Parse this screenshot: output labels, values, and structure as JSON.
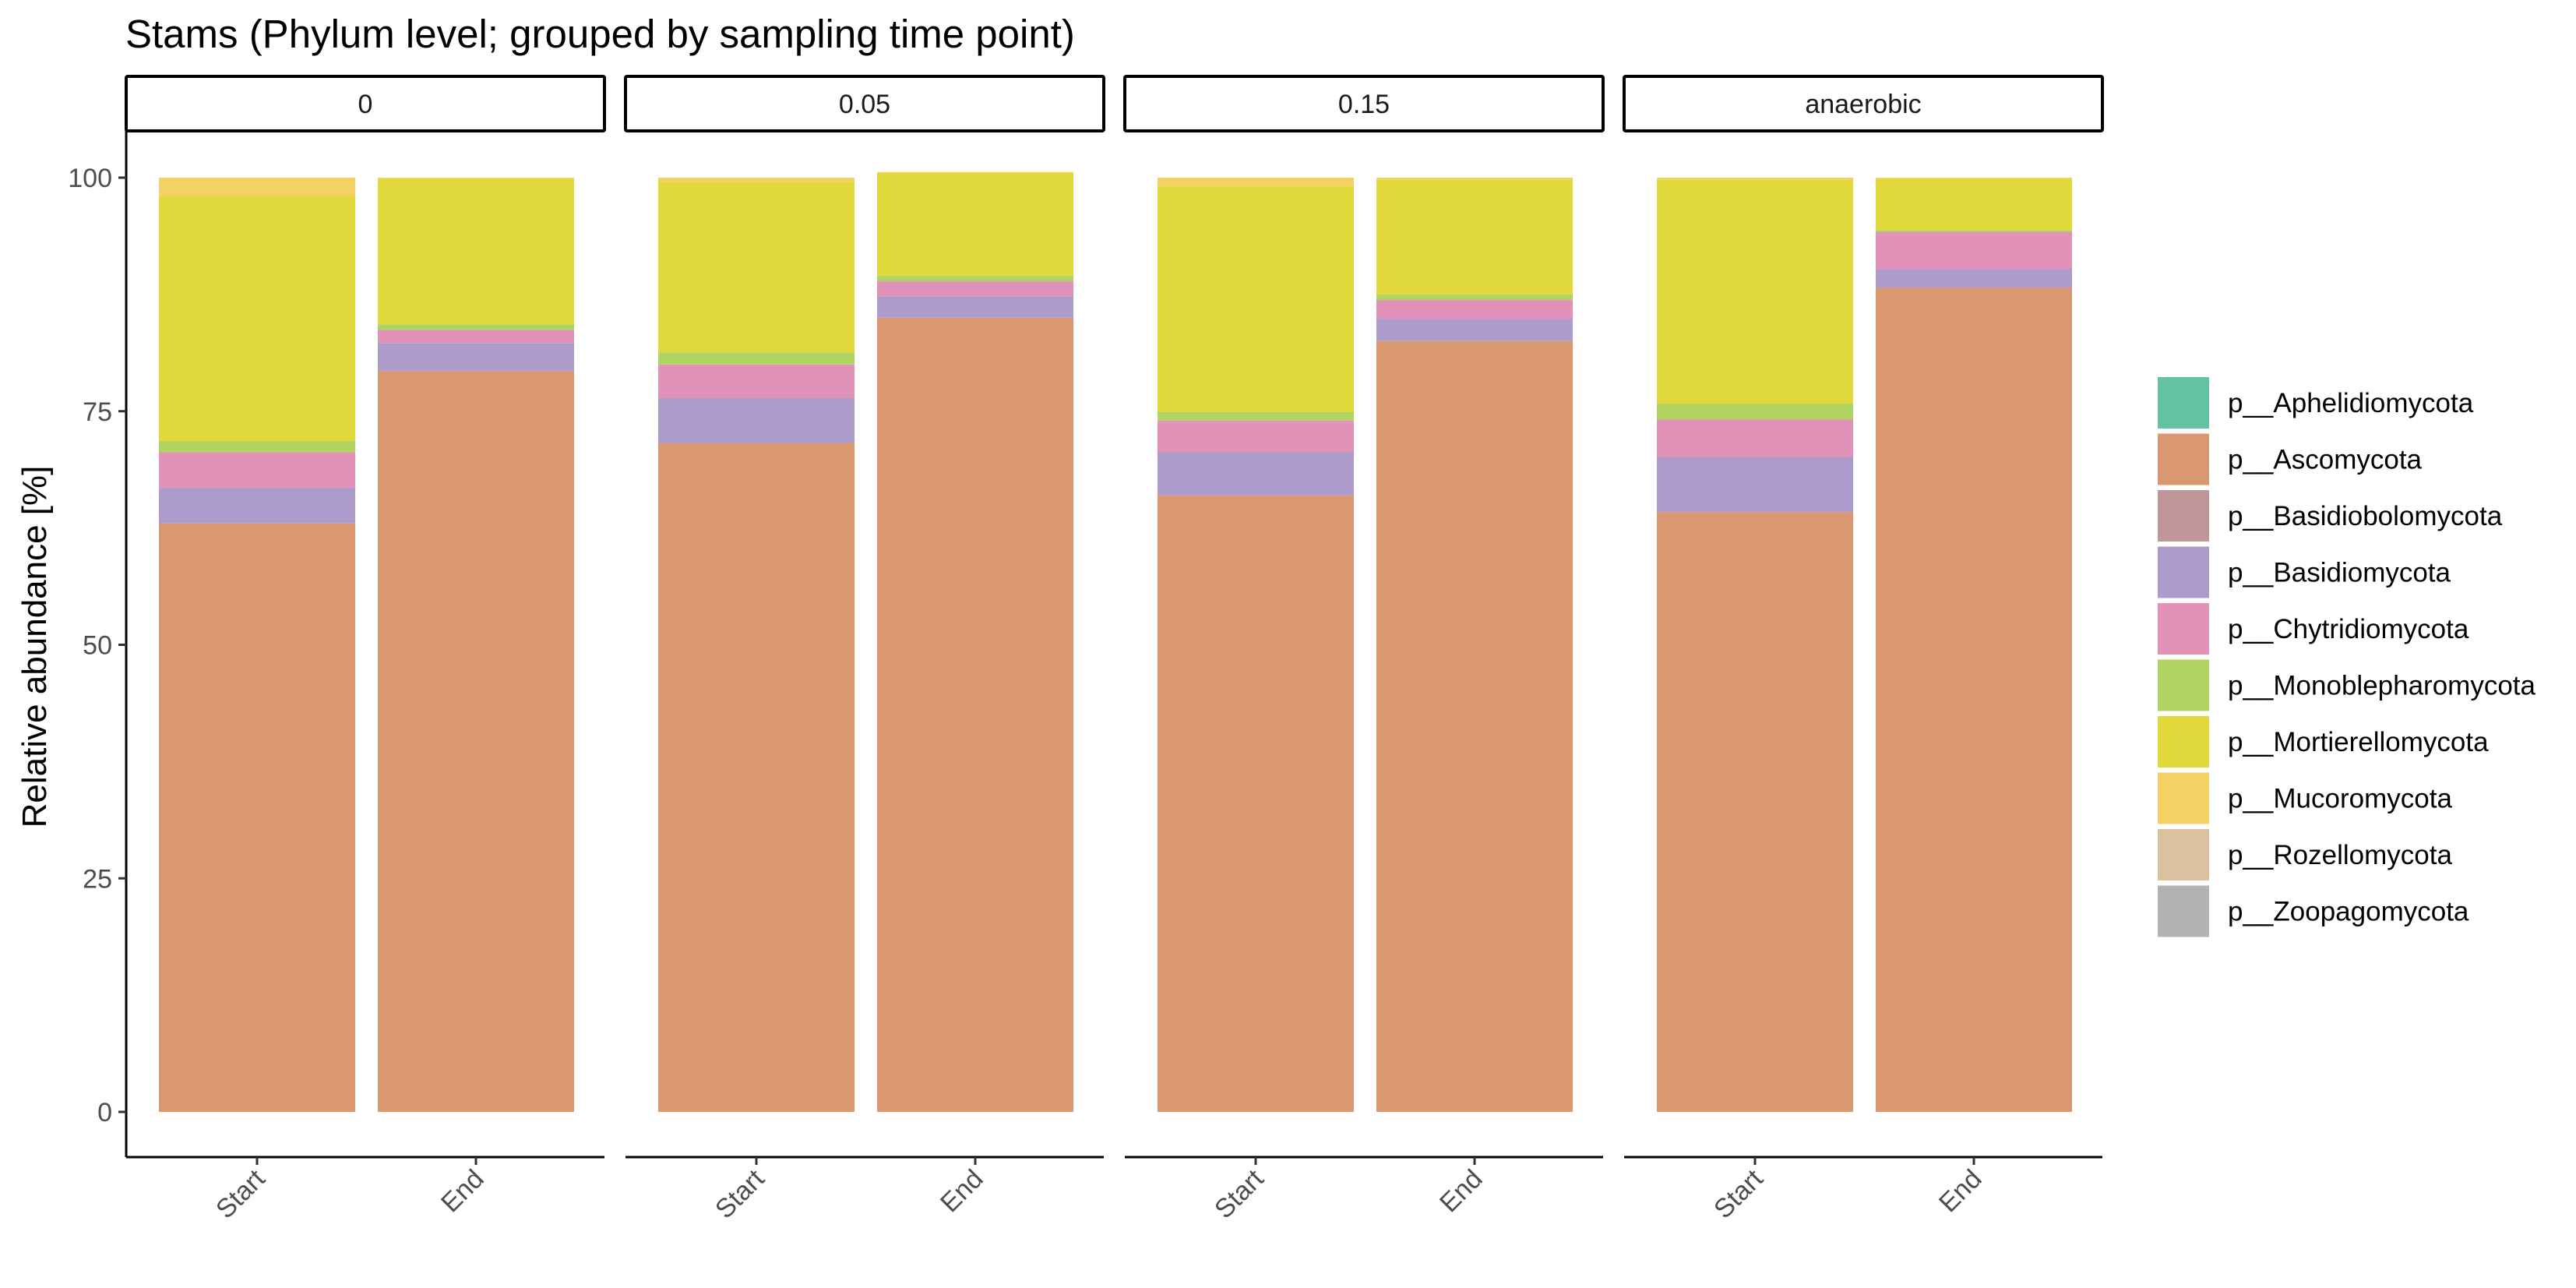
{
  "chart_data": {
    "type": "bar",
    "stacked": true,
    "title": "Stams (Phylum level; grouped by sampling time point)",
    "ylabel": "Relative abundance [%]",
    "xlabel": "",
    "ylim": [
      0,
      100
    ],
    "yticks": [
      0,
      25,
      50,
      75,
      100
    ],
    "facets": [
      "0",
      "0.05",
      "0.15",
      "anaerobic"
    ],
    "categories": [
      "Start",
      "End"
    ],
    "legend_position": "right",
    "grid": false,
    "series": [
      {
        "name": "p__Aphelidiomycota",
        "color": "#66C2A5",
        "values": [
          [
            0,
            0
          ],
          [
            0,
            0
          ],
          [
            0,
            0
          ],
          [
            0,
            0
          ]
        ]
      },
      {
        "name": "p__Ascomycota",
        "color": "#D9986F",
        "values": [
          [
            63.0,
            79.3
          ],
          [
            71.6,
            85.0
          ],
          [
            66.0,
            82.5
          ],
          [
            64.2,
            88.2
          ]
        ]
      },
      {
        "name": "p__Basidiobolomycota",
        "color": "#C09799",
        "values": [
          [
            0,
            0
          ],
          [
            0,
            0
          ],
          [
            0,
            0
          ],
          [
            0,
            0
          ]
        ]
      },
      {
        "name": "p__Basidiomycota",
        "color": "#AD9BCB",
        "values": [
          [
            3.8,
            3.0
          ],
          [
            4.8,
            2.3
          ],
          [
            4.6,
            2.4
          ],
          [
            5.9,
            2.0
          ]
        ]
      },
      {
        "name": "p__Chytridiomycota",
        "color": "#E092B8",
        "values": [
          [
            3.8,
            1.4
          ],
          [
            3.6,
            1.6
          ],
          [
            3.4,
            2.0
          ],
          [
            4.0,
            4.0
          ]
        ]
      },
      {
        "name": "p__Monoblepharomycota",
        "color": "#B1D361",
        "values": [
          [
            1.2,
            0.6
          ],
          [
            1.3,
            0.6
          ],
          [
            0.9,
            0.6
          ],
          [
            1.7,
            0.2
          ]
        ]
      },
      {
        "name": "p__Mortierellomycota",
        "color": "#E1D93C",
        "values": [
          [
            26.2,
            15.6
          ],
          [
            18.2,
            11.0
          ],
          [
            24.2,
            12.3
          ],
          [
            24.0,
            5.5
          ]
        ]
      },
      {
        "name": "p__Mucoromycota",
        "color": "#F3D163",
        "values": [
          [
            2.0,
            0.1
          ],
          [
            0.5,
            0.1
          ],
          [
            0.9,
            0.2
          ],
          [
            0.2,
            0.1
          ]
        ]
      },
      {
        "name": "p__Rozellomycota",
        "color": "#DCC19E",
        "values": [
          [
            0,
            0
          ],
          [
            0,
            0
          ],
          [
            0,
            0
          ],
          [
            0,
            0
          ]
        ]
      },
      {
        "name": "p__Zoopagomycota",
        "color": "#B3B3B3",
        "values": [
          [
            0,
            0
          ],
          [
            0,
            0
          ],
          [
            0,
            0
          ],
          [
            0,
            0
          ]
        ]
      }
    ]
  }
}
